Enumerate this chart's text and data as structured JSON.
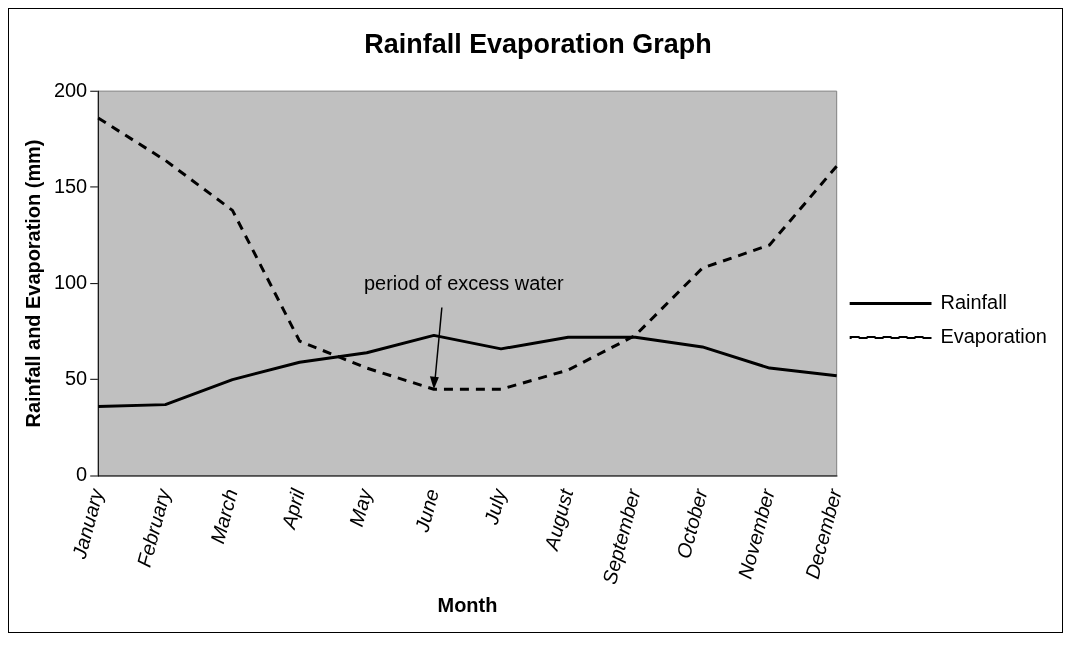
{
  "chart_data": {
    "type": "line",
    "title": "Rainfall Evaporation Graph",
    "xlabel": "Month",
    "ylabel": "Rainfall and Evaporation (mm)",
    "categories": [
      "January",
      "February",
      "March",
      "April",
      "May",
      "June",
      "July",
      "August",
      "September",
      "October",
      "November",
      "December"
    ],
    "series": [
      {
        "name": "Rainfall",
        "color": "#000000",
        "line_style": "solid",
        "values": [
          36,
          37,
          50,
          59,
          64,
          73,
          66,
          72,
          72,
          67,
          56,
          52
        ]
      },
      {
        "name": "Evaporation",
        "color": "#000000",
        "line_style": "dashed",
        "values": [
          186,
          164,
          138,
          70,
          56,
          45,
          45,
          55,
          73,
          108,
          120,
          161
        ]
      }
    ],
    "ylim": [
      0,
      200
    ],
    "yticks": [
      0,
      50,
      100,
      150,
      200
    ],
    "grid": false,
    "legend": "right",
    "marker": "none",
    "annotations": [
      {
        "text": "period of excess water",
        "x": "June",
        "y": 45
      }
    ]
  }
}
